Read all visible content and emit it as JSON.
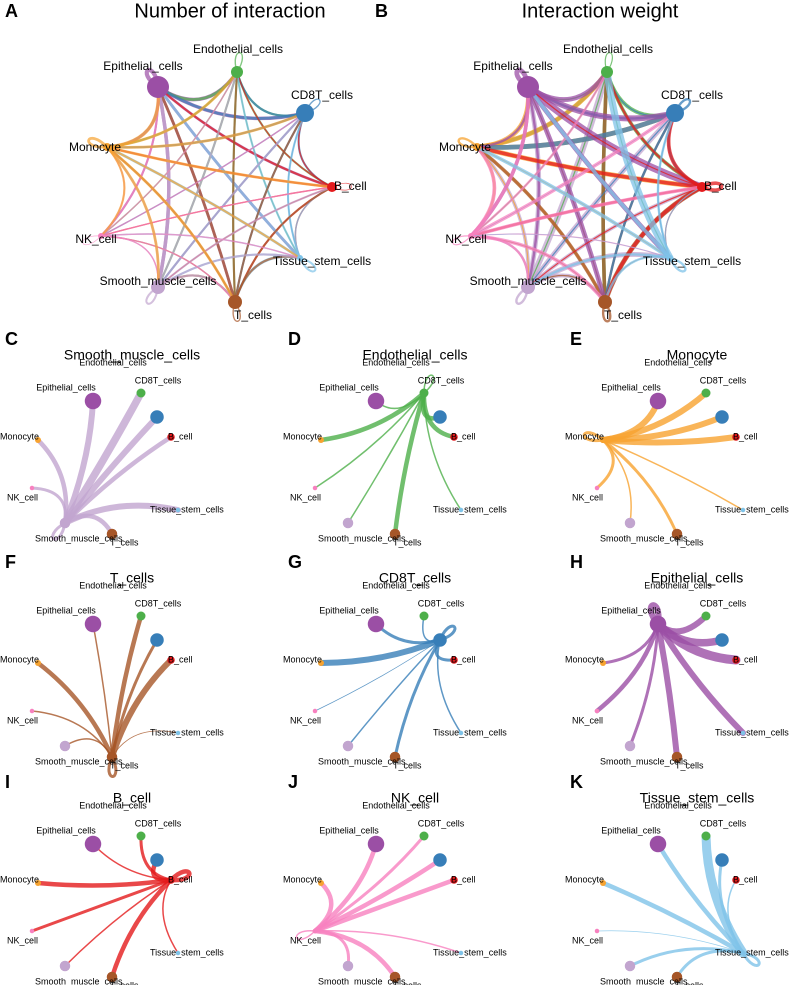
{
  "nodes": [
    {
      "label": "Epithelial_cells",
      "color": "#9b4fa5",
      "size": 11
    },
    {
      "label": "Endothelial_cells",
      "color": "#4daf4a",
      "size": 6
    },
    {
      "label": "CD8T_cells",
      "color": "#377eb8",
      "size": 9
    },
    {
      "label": "B_cell",
      "color": "#e41a1c",
      "size": 5
    },
    {
      "label": "Tissue_stem_cells",
      "color": "#7fc3e8",
      "size": 3
    },
    {
      "label": "T_cells",
      "color": "#a65628",
      "size": 7
    },
    {
      "label": "Smooth_muscle_cells",
      "color": "#c2a5cf",
      "size": 7
    },
    {
      "label": "NK_cell",
      "color": "#f781bf",
      "size": 3
    },
    {
      "label": "Monocyte",
      "color": "#f7a330",
      "size": 4
    }
  ],
  "panels": [
    {
      "letter": "A",
      "title": "Number of interaction",
      "counts": [
        [
          6,
          5,
          5,
          4,
          4,
          4,
          5,
          3,
          4
        ],
        [
          4,
          2,
          3,
          3,
          2,
          3,
          3,
          2,
          3
        ],
        [
          4,
          3,
          2,
          3,
          2,
          3,
          3,
          2,
          3
        ],
        [
          3,
          2,
          2,
          1,
          2,
          3,
          2,
          2,
          3
        ],
        [
          4,
          3,
          3,
          2,
          3,
          4,
          3,
          2,
          4
        ],
        [
          4,
          3,
          3,
          3,
          3,
          2,
          3,
          2,
          3
        ],
        [
          5,
          3,
          3,
          3,
          3,
          3,
          3,
          2,
          3
        ],
        [
          3,
          2,
          2,
          2,
          2,
          2,
          2,
          1,
          2
        ],
        [
          5,
          4,
          4,
          4,
          3,
          4,
          4,
          3,
          4
        ]
      ]
    },
    {
      "letter": "B",
      "title": "Interaction weight"
    },
    {
      "letter": "C",
      "title": "Smooth_muscle_cells",
      "weights": [
        4,
        5,
        4,
        3,
        4,
        3,
        2,
        2,
        3
      ]
    },
    {
      "letter": "D",
      "title": "Endothelial_cells",
      "weights": [
        1,
        1,
        3,
        3,
        1,
        3,
        1,
        1,
        3
      ]
    },
    {
      "letter": "E",
      "title": "Monocyte",
      "weights": [
        4,
        4,
        4,
        4,
        1,
        2,
        1,
        2,
        2
      ]
    },
    {
      "letter": "F",
      "title": "T_cells",
      "weights": [
        1,
        3,
        2,
        4,
        0.5,
        2,
        1,
        1,
        3
      ]
    },
    {
      "letter": "G",
      "title": "CD8T_cells",
      "weights": [
        2,
        1,
        2,
        2,
        1,
        2,
        1,
        0.5,
        4
      ]
    },
    {
      "letter": "H",
      "title": "Epithelial_cells",
      "weights": [
        4,
        4,
        5,
        6,
        4,
        4,
        2,
        3,
        2
      ]
    },
    {
      "letter": "I",
      "title": "B_cell",
      "weights": [
        1,
        2,
        3,
        3,
        1,
        3,
        1,
        2,
        3
      ]
    },
    {
      "letter": "J",
      "title": "NK_cell",
      "weights": [
        3,
        2,
        3,
        3,
        1,
        3,
        2,
        1,
        3
      ]
    },
    {
      "letter": "K",
      "title": "Tissue_stem_cells",
      "weights": [
        3,
        6,
        2,
        1,
        2,
        2,
        2,
        0.5,
        3
      ]
    }
  ]
}
